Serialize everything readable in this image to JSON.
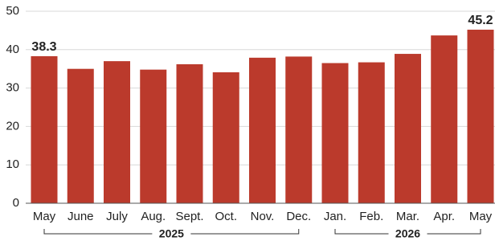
{
  "chart_data": {
    "type": "bar",
    "categories": [
      "May",
      "June",
      "July",
      "Aug.",
      "Sept.",
      "Oct.",
      "Nov.",
      "Dec.",
      "Jan.",
      "Feb.",
      "Mar.",
      "Apr.",
      "May"
    ],
    "values": [
      38.3,
      35,
      37,
      34.8,
      36.2,
      34.1,
      37.9,
      38.2,
      36.5,
      36.7,
      38.9,
      43.7,
      45.2
    ],
    "value_labels": [
      "38.3",
      null,
      null,
      null,
      null,
      null,
      null,
      null,
      null,
      null,
      null,
      null,
      "45.2"
    ],
    "color": "#bb3a2c",
    "ylim": [
      0,
      50
    ],
    "yticks": [
      0,
      10,
      20,
      30,
      40,
      50
    ],
    "grid": true,
    "groups": [
      {
        "label": "2025",
        "start": 0,
        "end": 7
      },
      {
        "label": "2026",
        "start": 8,
        "end": 12
      }
    ]
  }
}
